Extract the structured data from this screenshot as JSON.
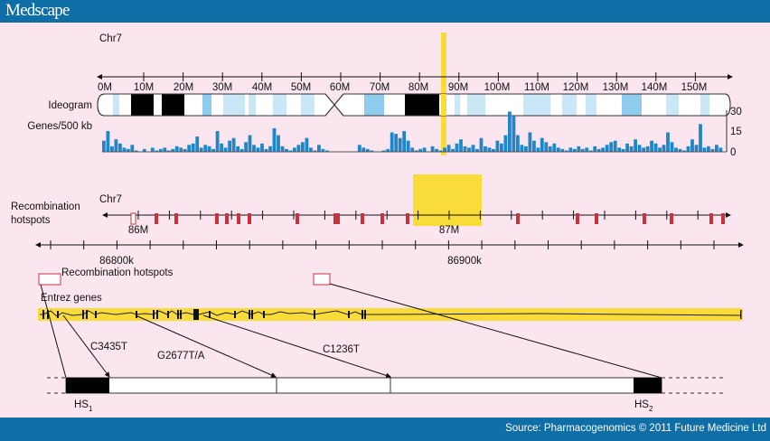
{
  "header": {
    "logo": "Medscape"
  },
  "footer": {
    "source": "Source: Pharmacogenomics © 2011 Future Medicine Ltd"
  },
  "colors": {
    "header": "#0f6ea6",
    "background": "#fbe5ef",
    "highlight": "#f9dc3a",
    "genes_bar": "#1f86c8",
    "hotspot": "#c8323c"
  },
  "chromosome_panel": {
    "chr_label": "Chr7",
    "tick_labels": [
      "0M",
      "10M",
      "20M",
      "30M",
      "40M",
      "50M",
      "60M",
      "70M",
      "80M",
      "90M",
      "100M",
      "110M",
      "120M",
      "130M",
      "140M",
      "150M"
    ],
    "ideogram_label": "Ideogram",
    "density_label": "Genes/500 kb",
    "density_axis": [
      "30",
      "15",
      "0"
    ],
    "density_max": 30,
    "gene_density": [
      8,
      15,
      4,
      9,
      6,
      3,
      2,
      5,
      1,
      0,
      2,
      0,
      3,
      1,
      2,
      3,
      1,
      2,
      4,
      3,
      2,
      5,
      6,
      11,
      3,
      5,
      4,
      2,
      15,
      6,
      3,
      8,
      10,
      4,
      2,
      7,
      12,
      5,
      3,
      6,
      2,
      4,
      17,
      12,
      4,
      2,
      1,
      3,
      5,
      7,
      10,
      3,
      1,
      5,
      2,
      1,
      0,
      0,
      0,
      0,
      0,
      0,
      0,
      5,
      3,
      2,
      1,
      0,
      0,
      1,
      2,
      14,
      13,
      10,
      15,
      8,
      3,
      1,
      2,
      3,
      0,
      4,
      2,
      1,
      3,
      5,
      2,
      6,
      9,
      4,
      3,
      5,
      2,
      10,
      4,
      3,
      2,
      8,
      6,
      12,
      29,
      26,
      12,
      5,
      4,
      14,
      8,
      3,
      10,
      7,
      4,
      6,
      3,
      2,
      1,
      3,
      2,
      4,
      2,
      3,
      1,
      4,
      2,
      3,
      5,
      7,
      8,
      3,
      2,
      6,
      4,
      9,
      5,
      3,
      4,
      8,
      6,
      3,
      5,
      14,
      7,
      3,
      2,
      1,
      4,
      9,
      5,
      20,
      3,
      4,
      2,
      5,
      3
    ]
  },
  "region_panel": {
    "chr_label": "Chr7",
    "hotspots_label_1": "Recombination",
    "hotspots_label_2": "hotspots",
    "tick_labels": [
      "86M",
      "87M"
    ]
  },
  "detail_panel": {
    "tick_labels": [
      "86800k",
      "86900k"
    ],
    "hotspots_legend": "Recombination hotspots",
    "genes_label": "Entrez genes",
    "snps": [
      "C3435T",
      "G2677T/A",
      "C1236T"
    ],
    "hs1": "HS",
    "hs1_sub": "1",
    "hs2": "HS",
    "hs2_sub": "2"
  }
}
